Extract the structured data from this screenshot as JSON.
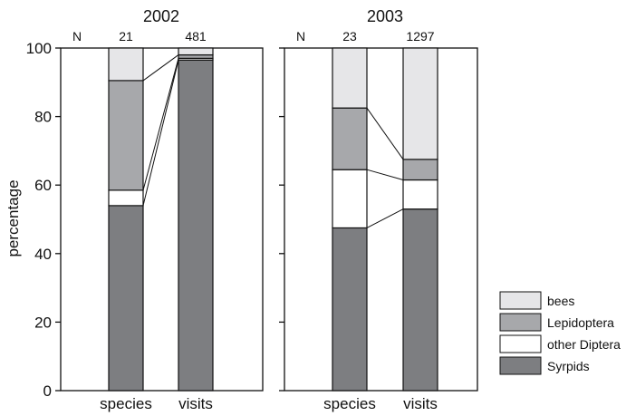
{
  "chart_data": {
    "type": "bar",
    "stacked": true,
    "ylabel": "percentage",
    "ylim": [
      0,
      100
    ],
    "yticks": [
      0,
      20,
      40,
      60,
      80,
      100
    ],
    "categories": [
      "species",
      "visits"
    ],
    "n_label": "N",
    "colors": {
      "bees": "#e6e6e8",
      "Lepidoptera": "#a7a8ab",
      "other Diptera": "#ffffff",
      "Syrpids": "#7d7e81"
    },
    "legend": {
      "position": "bottom-right",
      "entries": [
        "bees",
        "Lepidoptera",
        "other Diptera",
        "Syrpids"
      ]
    },
    "panels": [
      {
        "title": "2002",
        "n": [
          "21",
          "481"
        ],
        "series": [
          {
            "name": "Syrpids",
            "values": [
              54,
              96.5
            ]
          },
          {
            "name": "other Diptera",
            "values": [
              4.5,
              0.5
            ]
          },
          {
            "name": "Lepidoptera",
            "values": [
              32,
              1
            ]
          },
          {
            "name": "bees",
            "values": [
              9.5,
              2
            ]
          }
        ]
      },
      {
        "title": "2003",
        "n": [
          "23",
          "1297"
        ],
        "series": [
          {
            "name": "Syrpids",
            "values": [
              47.5,
              53
            ]
          },
          {
            "name": "other Diptera",
            "values": [
              17,
              8.5
            ]
          },
          {
            "name": "Lepidoptera",
            "values": [
              18,
              6
            ]
          },
          {
            "name": "bees",
            "values": [
              17.5,
              32.5
            ]
          }
        ]
      }
    ]
  }
}
